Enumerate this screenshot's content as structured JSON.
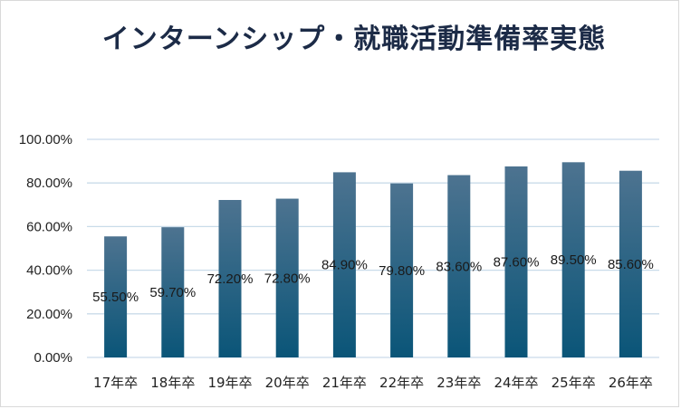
{
  "chart_data": {
    "type": "bar",
    "title": "インターンシップ・就職活動準備率実態",
    "categories": [
      "17年卒",
      "18年卒",
      "19年卒",
      "20年卒",
      "21年卒",
      "22年卒",
      "23年卒",
      "24年卒",
      "25年卒",
      "26年卒"
    ],
    "values": [
      55.5,
      59.7,
      72.2,
      72.8,
      84.9,
      79.8,
      83.6,
      87.6,
      89.5,
      85.6
    ],
    "data_labels": [
      "55.50%",
      "59.70%",
      "72.20%",
      "72.80%",
      "84.90%",
      "79.80%",
      "83.60%",
      "87.60%",
      "89.50%",
      "85.60%"
    ],
    "y_ticks": [
      "0.00%",
      "20.00%",
      "40.00%",
      "60.00%",
      "80.00%",
      "100.00%"
    ],
    "ylim": [
      0,
      100
    ],
    "xlabel": "",
    "ylabel": "",
    "grid": true,
    "legend": "none",
    "colors": {
      "bar_top": "#4d7390",
      "bar_bottom": "#0a5578",
      "grid": "#c9dbe9",
      "title": "#1c2b47"
    }
  }
}
